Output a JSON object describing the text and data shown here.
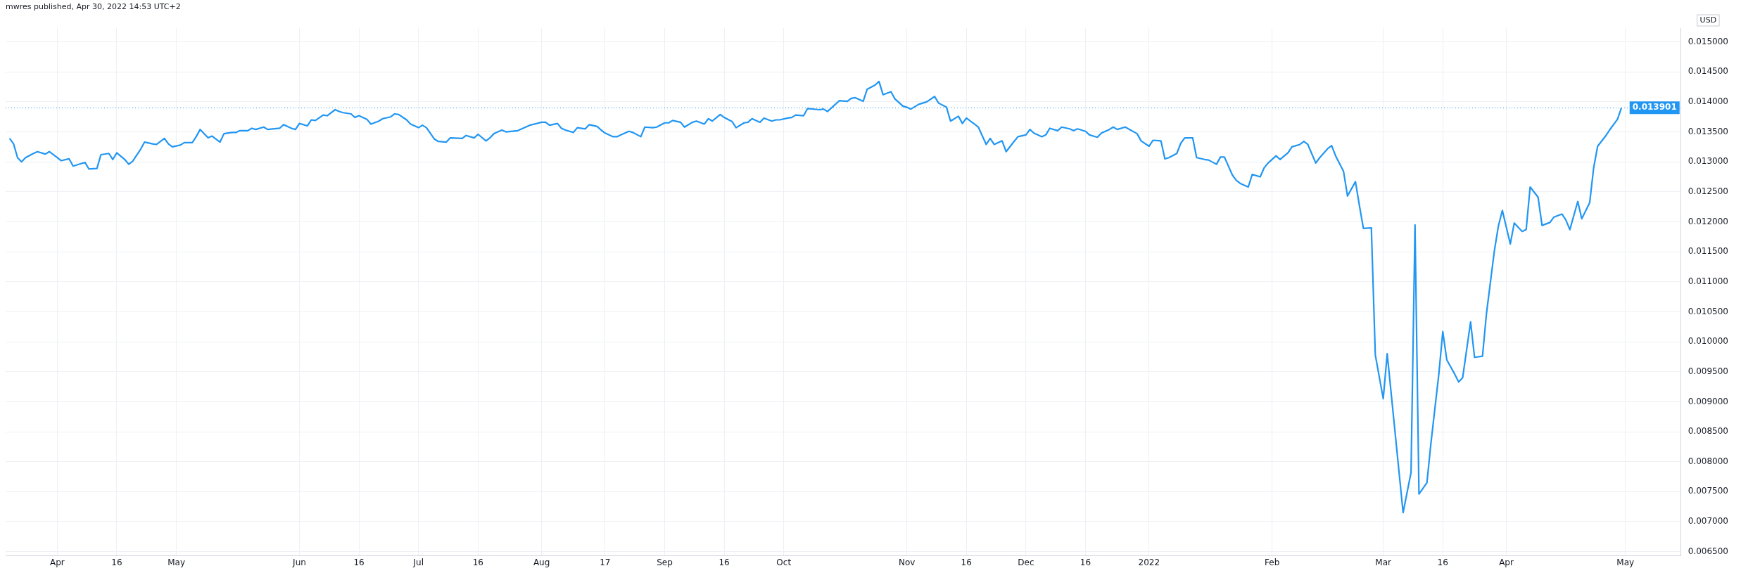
{
  "chart_data": {
    "type": "line",
    "title": "mwres published, Apr 30, 2022 14:53 UTC+2",
    "ylabel": "USD",
    "xlim": [
      "2021-03-19",
      "2022-05-15"
    ],
    "ylim": [
      0.00643,
      0.01523
    ],
    "xticks": [
      {
        "value": "2021-04-01",
        "label": "Apr"
      },
      {
        "value": "2021-04-16",
        "label": "16"
      },
      {
        "value": "2021-05-01",
        "label": "May"
      },
      {
        "value": "2021-06-01",
        "label": "Jun"
      },
      {
        "value": "2021-06-16",
        "label": "16"
      },
      {
        "value": "2021-07-01",
        "label": "Jul"
      },
      {
        "value": "2021-07-16",
        "label": "16"
      },
      {
        "value": "2021-08-01",
        "label": "Aug"
      },
      {
        "value": "2021-08-17",
        "label": "17"
      },
      {
        "value": "2021-09-01",
        "label": "Sep"
      },
      {
        "value": "2021-09-16",
        "label": "16"
      },
      {
        "value": "2021-10-01",
        "label": "Oct"
      },
      {
        "value": "2021-11-01",
        "label": "Nov"
      },
      {
        "value": "2021-11-16",
        "label": "16"
      },
      {
        "value": "2021-12-01",
        "label": "Dec"
      },
      {
        "value": "2021-12-16",
        "label": "16"
      },
      {
        "value": "2022-01-01",
        "label": "2022"
      },
      {
        "value": "2022-02-01",
        "label": "Feb"
      },
      {
        "value": "2022-03-01",
        "label": "Mar"
      },
      {
        "value": "2022-03-16",
        "label": "16"
      },
      {
        "value": "2022-04-01",
        "label": "Apr"
      },
      {
        "value": "2022-05-01",
        "label": "May"
      }
    ],
    "yticks": [
      {
        "value": 0.0065,
        "label": "0.006500"
      },
      {
        "value": 0.007,
        "label": "0.007000"
      },
      {
        "value": 0.0075,
        "label": "0.007500"
      },
      {
        "value": 0.008,
        "label": "0.008000"
      },
      {
        "value": 0.0085,
        "label": "0.008500"
      },
      {
        "value": 0.009,
        "label": "0.009000"
      },
      {
        "value": 0.0095,
        "label": "0.009500"
      },
      {
        "value": 0.01,
        "label": "0.010000"
      },
      {
        "value": 0.0105,
        "label": "0.010500"
      },
      {
        "value": 0.011,
        "label": "0.011000"
      },
      {
        "value": 0.0115,
        "label": "0.011500"
      },
      {
        "value": 0.012,
        "label": "0.012000"
      },
      {
        "value": 0.0125,
        "label": "0.012500"
      },
      {
        "value": 0.013,
        "label": "0.013000"
      },
      {
        "value": 0.0135,
        "label": "0.013500"
      },
      {
        "value": 0.014,
        "label": "0.014000"
      },
      {
        "value": 0.0145,
        "label": "0.014500"
      },
      {
        "value": 0.015,
        "label": "0.015000"
      }
    ],
    "grid": true,
    "ref_lines": [
      {
        "axis": "y",
        "value": 0.013901,
        "label": "0.013901",
        "color": "#2196f3",
        "line_style": "dotted"
      }
    ],
    "series": [
      {
        "color": "#2196f3",
        "x": [
          "2021-03-20",
          "2021-03-21",
          "2021-03-22",
          "2021-03-23",
          "2021-03-24",
          "2021-03-26",
          "2021-03-27",
          "2021-03-29",
          "2021-03-30",
          "2021-04-01",
          "2021-04-02",
          "2021-04-04",
          "2021-04-05",
          "2021-04-06",
          "2021-04-08",
          "2021-04-09",
          "2021-04-11",
          "2021-04-12",
          "2021-04-14",
          "2021-04-15",
          "2021-04-16",
          "2021-04-18",
          "2021-04-19",
          "2021-04-20",
          "2021-04-22",
          "2021-04-23",
          "2021-04-25",
          "2021-04-26",
          "2021-04-28",
          "2021-04-29",
          "2021-04-30",
          "2021-05-02",
          "2021-05-03",
          "2021-05-05",
          "2021-05-06",
          "2021-05-07",
          "2021-05-09",
          "2021-05-10",
          "2021-05-12",
          "2021-05-13",
          "2021-05-15",
          "2021-05-16",
          "2021-05-17",
          "2021-05-19",
          "2021-05-20",
          "2021-05-21",
          "2021-05-23",
          "2021-05-24",
          "2021-05-27",
          "2021-05-28",
          "2021-05-30",
          "2021-05-31",
          "2021-06-01",
          "2021-06-03",
          "2021-06-04",
          "2021-06-05",
          "2021-06-07",
          "2021-06-08",
          "2021-06-10",
          "2021-06-11",
          "2021-06-12",
          "2021-06-14",
          "2021-06-15",
          "2021-06-16",
          "2021-06-18",
          "2021-06-19",
          "2021-06-21",
          "2021-06-22",
          "2021-06-24",
          "2021-06-25",
          "2021-06-26",
          "2021-06-28",
          "2021-06-29",
          "2021-07-01",
          "2021-07-02",
          "2021-07-03",
          "2021-07-05",
          "2021-07-06",
          "2021-07-08",
          "2021-07-09",
          "2021-07-12",
          "2021-07-13",
          "2021-07-15",
          "2021-07-16",
          "2021-07-18",
          "2021-07-19",
          "2021-07-20",
          "2021-07-22",
          "2021-07-23",
          "2021-07-26",
          "2021-07-29",
          "2021-08-01",
          "2021-08-02",
          "2021-08-03",
          "2021-08-05",
          "2021-08-06",
          "2021-08-07",
          "2021-08-09",
          "2021-08-10",
          "2021-08-12",
          "2021-08-13",
          "2021-08-15",
          "2021-08-16",
          "2021-08-17",
          "2021-08-19",
          "2021-08-20",
          "2021-08-21",
          "2021-08-23",
          "2021-08-24",
          "2021-08-26",
          "2021-08-27",
          "2021-08-29",
          "2021-08-30",
          "2021-09-01",
          "2021-09-02",
          "2021-09-03",
          "2021-09-05",
          "2021-09-06",
          "2021-09-08",
          "2021-09-09",
          "2021-09-11",
          "2021-09-12",
          "2021-09-13",
          "2021-09-15",
          "2021-09-16",
          "2021-09-18",
          "2021-09-19",
          "2021-09-21",
          "2021-09-22",
          "2021-09-23",
          "2021-09-25",
          "2021-09-26",
          "2021-09-28",
          "2021-09-29",
          "2021-09-30",
          "2021-10-02",
          "2021-10-03",
          "2021-10-04",
          "2021-10-06",
          "2021-10-07",
          "2021-10-10",
          "2021-10-11",
          "2021-10-12",
          "2021-10-14",
          "2021-10-15",
          "2021-10-17",
          "2021-10-18",
          "2021-10-19",
          "2021-10-21",
          "2021-10-22",
          "2021-10-24",
          "2021-10-25",
          "2021-10-26",
          "2021-10-28",
          "2021-10-29",
          "2021-10-31",
          "2021-11-01",
          "2021-11-02",
          "2021-11-04",
          "2021-11-05",
          "2021-11-06",
          "2021-11-08",
          "2021-11-09",
          "2021-11-11",
          "2021-11-12",
          "2021-11-14",
          "2021-11-15",
          "2021-11-16",
          "2021-11-18",
          "2021-11-19",
          "2021-11-21",
          "2021-11-22",
          "2021-11-23",
          "2021-11-25",
          "2021-11-26",
          "2021-11-28",
          "2021-11-29",
          "2021-12-01",
          "2021-12-02",
          "2021-12-03",
          "2021-12-05",
          "2021-12-06",
          "2021-12-07",
          "2021-12-09",
          "2021-12-10",
          "2021-12-12",
          "2021-12-13",
          "2021-12-14",
          "2021-12-16",
          "2021-12-17",
          "2021-12-19",
          "2021-12-20",
          "2021-12-22",
          "2021-12-23",
          "2021-12-24",
          "2021-12-26",
          "2021-12-29",
          "2021-12-30",
          "2022-01-01",
          "2022-01-02",
          "2022-01-04",
          "2022-01-05",
          "2022-01-06",
          "2022-01-08",
          "2022-01-09",
          "2022-01-10",
          "2022-01-12",
          "2022-01-13",
          "2022-01-15",
          "2022-01-16",
          "2022-01-18",
          "2022-01-19",
          "2022-01-20",
          "2022-01-22",
          "2022-01-23",
          "2022-01-24",
          "2022-01-26",
          "2022-01-27",
          "2022-01-29",
          "2022-01-30",
          "2022-01-31",
          "2022-02-02",
          "2022-02-03",
          "2022-02-05",
          "2022-02-06",
          "2022-02-08",
          "2022-02-09",
          "2022-02-10",
          "2022-02-12",
          "2022-02-13",
          "2022-02-15",
          "2022-02-16",
          "2022-02-17",
          "2022-02-19",
          "2022-02-20",
          "2022-02-22",
          "2022-02-23",
          "2022-02-24",
          "2022-02-26",
          "2022-02-27",
          "2022-03-01",
          "2022-03-02",
          "2022-03-06",
          "2022-03-08",
          "2022-03-09",
          "2022-03-10",
          "2022-03-12",
          "2022-03-13",
          "2022-03-15",
          "2022-03-16",
          "2022-03-17",
          "2022-03-19",
          "2022-03-20",
          "2022-03-21",
          "2022-03-23",
          "2022-03-24",
          "2022-03-26",
          "2022-03-27",
          "2022-03-29",
          "2022-03-30",
          "2022-03-31",
          "2022-04-02",
          "2022-04-03",
          "2022-04-05",
          "2022-04-06",
          "2022-04-07",
          "2022-04-09",
          "2022-04-10",
          "2022-04-12",
          "2022-04-13",
          "2022-04-15",
          "2022-04-16",
          "2022-04-17",
          "2022-04-19",
          "2022-04-20",
          "2022-04-22",
          "2022-04-23",
          "2022-04-24",
          "2022-04-26",
          "2022-04-27",
          "2022-04-29",
          "2022-04-30"
        ],
        "values": [
          0.01339,
          0.0133,
          0.01307,
          0.013,
          0.01307,
          0.01314,
          0.01317,
          0.01313,
          0.01317,
          0.01307,
          0.01302,
          0.01305,
          0.01293,
          0.01295,
          0.01299,
          0.01288,
          0.01289,
          0.01312,
          0.01314,
          0.01304,
          0.01315,
          0.01304,
          0.01296,
          0.01301,
          0.01321,
          0.01333,
          0.0133,
          0.01329,
          0.01339,
          0.0133,
          0.01325,
          0.01328,
          0.01332,
          0.01332,
          0.01342,
          0.01354,
          0.0134,
          0.01343,
          0.01333,
          0.01347,
          0.01349,
          0.01349,
          0.01352,
          0.01352,
          0.01356,
          0.01354,
          0.01358,
          0.01354,
          0.01356,
          0.01362,
          0.01356,
          0.01354,
          0.01364,
          0.0136,
          0.0137,
          0.01369,
          0.01378,
          0.01377,
          0.01387,
          0.01384,
          0.01382,
          0.0138,
          0.01374,
          0.01377,
          0.01371,
          0.01363,
          0.01368,
          0.01372,
          0.01375,
          0.0138,
          0.01379,
          0.0137,
          0.01363,
          0.01357,
          0.01361,
          0.01357,
          0.01338,
          0.01334,
          0.01333,
          0.0134,
          0.01339,
          0.01344,
          0.0134,
          0.01346,
          0.01335,
          0.0134,
          0.01347,
          0.01353,
          0.0135,
          0.01352,
          0.01361,
          0.01366,
          0.01366,
          0.01361,
          0.01364,
          0.01356,
          0.01353,
          0.01349,
          0.01357,
          0.01355,
          0.01362,
          0.01359,
          0.01353,
          0.01348,
          0.01342,
          0.01342,
          0.01345,
          0.01351,
          0.01349,
          0.01342,
          0.01358,
          0.01357,
          0.01358,
          0.01365,
          0.01365,
          0.01369,
          0.01366,
          0.01358,
          0.01366,
          0.01368,
          0.01363,
          0.01372,
          0.01368,
          0.01379,
          0.01374,
          0.01367,
          0.01357,
          0.01365,
          0.01366,
          0.01372,
          0.01366,
          0.01373,
          0.01368,
          0.0137,
          0.0137,
          0.01373,
          0.01374,
          0.01378,
          0.01377,
          0.01389,
          0.01387,
          0.01388,
          0.01384,
          0.01396,
          0.01402,
          0.01401,
          0.01406,
          0.01407,
          0.01401,
          0.01421,
          0.01428,
          0.01434,
          0.01412,
          0.01417,
          0.01405,
          0.01393,
          0.01391,
          0.01388,
          0.01396,
          0.01398,
          0.014,
          0.01409,
          0.01398,
          0.01391,
          0.01368,
          0.01376,
          0.01364,
          0.01373,
          0.01363,
          0.01358,
          0.01329,
          0.01339,
          0.01329,
          0.01335,
          0.01317,
          0.01334,
          0.01342,
          0.01345,
          0.01354,
          0.01348,
          0.01342,
          0.01345,
          0.01356,
          0.01352,
          0.01358,
          0.01355,
          0.01352,
          0.01355,
          0.01351,
          0.01345,
          0.01341,
          0.01348,
          0.01354,
          0.01358,
          0.01354,
          0.01358,
          0.01347,
          0.01335,
          0.01326,
          0.01336,
          0.01335,
          0.01305,
          0.01307,
          0.01314,
          0.01331,
          0.0134,
          0.0134,
          0.01307,
          0.01304,
          0.01303,
          0.01296,
          0.01308,
          0.01308,
          0.01278,
          0.01269,
          0.01264,
          0.01258,
          0.01279,
          0.01275,
          0.0129,
          0.01298,
          0.0131,
          0.01304,
          0.01315,
          0.01325,
          0.01329,
          0.01334,
          0.01329,
          0.01298,
          0.01307,
          0.01322,
          0.01327,
          0.0131,
          0.01284,
          0.01243,
          0.01267,
          0.01227,
          0.01189,
          0.0119,
          0.00978,
          0.00905,
          0.0098,
          0.00715,
          0.00782,
          0.01195,
          0.00746,
          0.00765,
          0.0083,
          0.00946,
          0.01017,
          0.0097,
          0.00946,
          0.00933,
          0.0094,
          0.01033,
          0.00974,
          0.00976,
          0.01047,
          0.01152,
          0.01193,
          0.01219,
          0.01163,
          0.01198,
          0.01184,
          0.01187,
          0.01258,
          0.01241,
          0.01194,
          0.01199,
          0.01208,
          0.01213,
          0.01203,
          0.01187,
          0.01234,
          0.01205,
          0.01232,
          0.0129,
          0.01326,
          0.01343,
          0.01353,
          0.01371,
          0.013901
        ]
      }
    ]
  }
}
